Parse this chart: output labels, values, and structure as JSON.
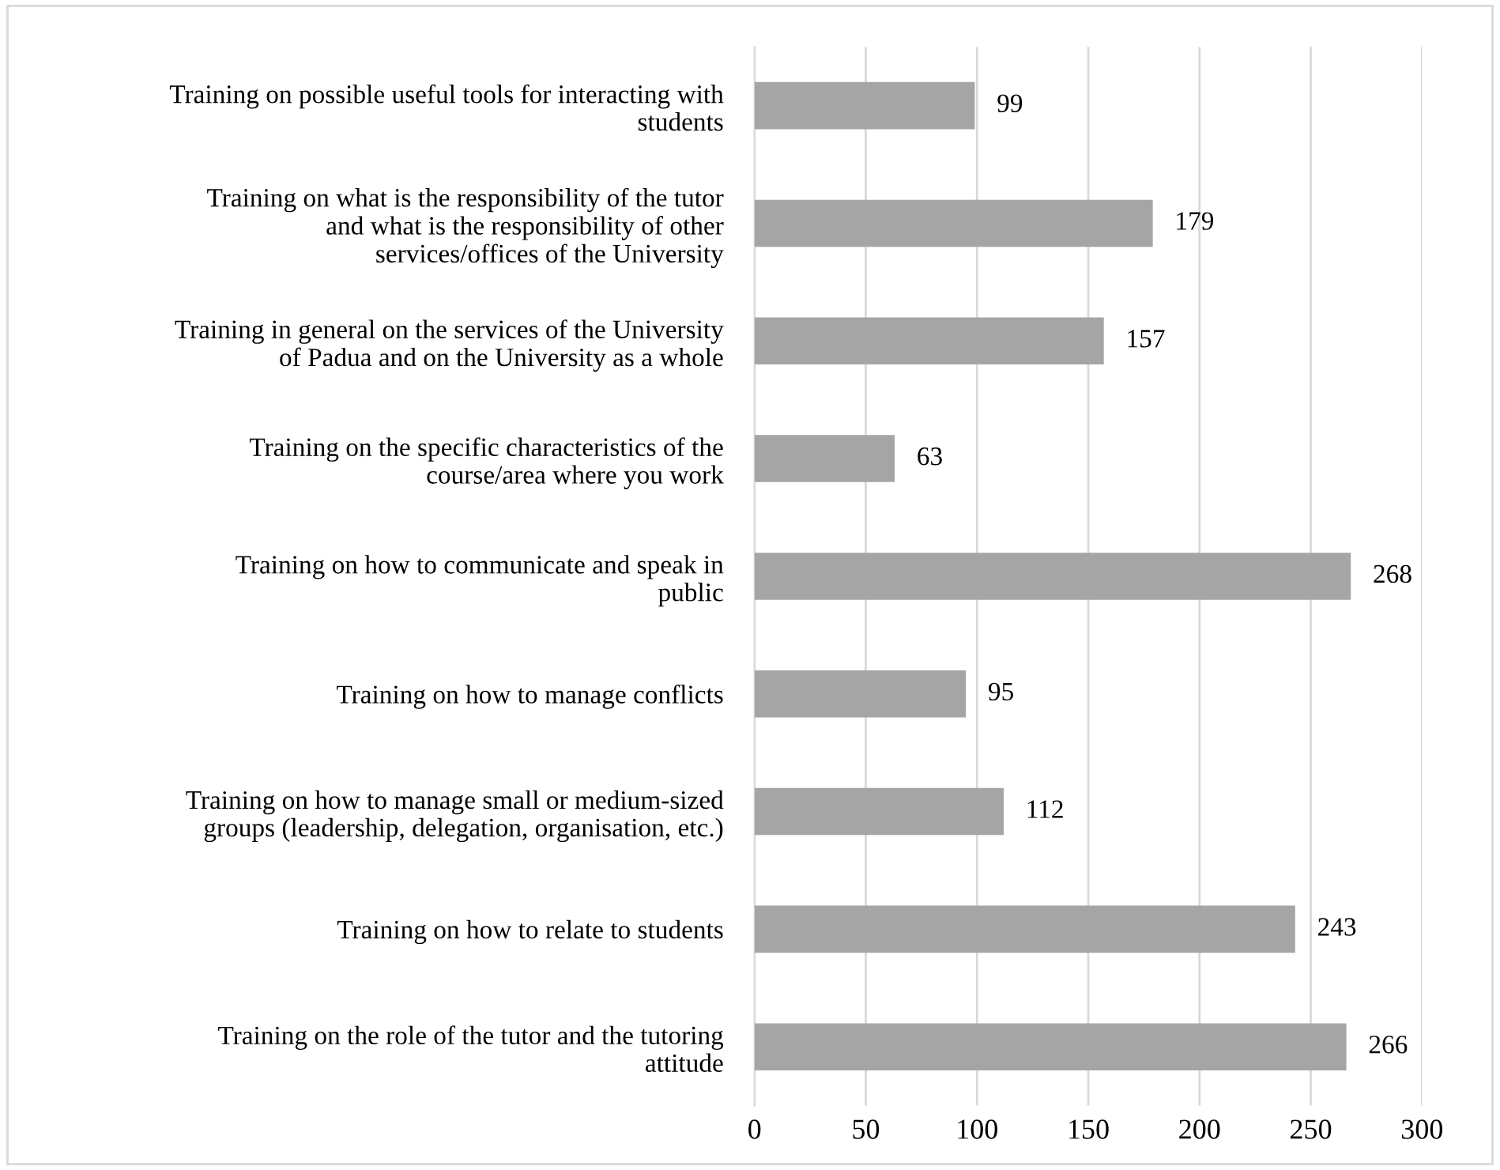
{
  "chart_data": {
    "type": "bar",
    "orientation": "horizontal",
    "categories": [
      "Training on possible useful tools for interacting with\nstudents",
      "Training on what is the responsibility of the tutor\nand what is the responsibility of other\nservices/offices of the University",
      "Training in general on the services of the University\nof Padua and on the University as a whole",
      "Training on the specific characteristics of the\ncourse/area where you work",
      "Training on how to communicate and speak in\npublic",
      "Training on how to manage conflicts",
      "Training on how to manage small or medium-sized\ngroups (leadership, delegation, organisation, etc.)",
      "Training on how to relate to students",
      "Training on the role of the tutor and the tutoring\nattitude"
    ],
    "values": [
      99,
      179,
      157,
      63,
      268,
      95,
      112,
      243,
      266
    ],
    "color": "#a5a5a5",
    "xlim": [
      0,
      300
    ],
    "xticks": [
      0,
      50,
      100,
      150,
      200,
      250,
      300
    ],
    "grid": "x",
    "data_labels": true
  }
}
